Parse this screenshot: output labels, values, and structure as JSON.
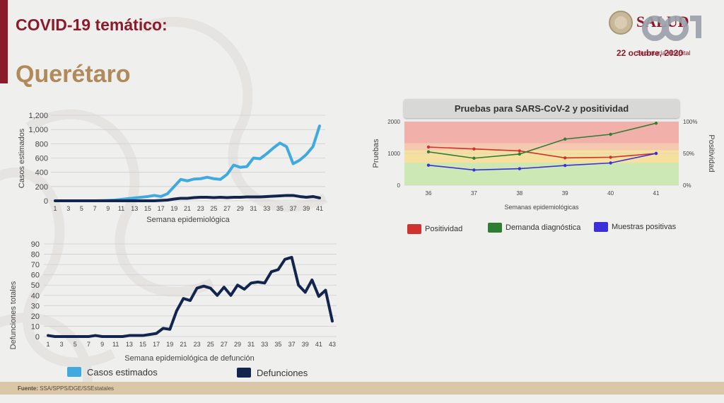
{
  "header": {
    "title": "COVID-19 temático:",
    "state": "Querétaro",
    "date": "22 octubre, 2020",
    "logo_overlay_text": "Secretaría Hospital"
  },
  "footer": {
    "label": "Fuente:",
    "source": "SSA/SPPS/DGE/SSEstatales"
  },
  "colors": {
    "brand": "#8b1a2b",
    "gold": "#b08a5a",
    "cases": "#3fa9e0",
    "deaths": "#14254d",
    "positividad": "#d0322d",
    "demanda": "#2e7d32",
    "muestras": "#3a2fd8"
  },
  "legend_bottom": [
    {
      "name": "Casos estimados",
      "color": "#3fa9e0"
    },
    {
      "name": "Defunciones",
      "color": "#14254d"
    }
  ],
  "chart_data": [
    {
      "type": "line",
      "ylabel": "Casos estimados",
      "xlabel": "Semana epidemiológica",
      "ylim": [
        0,
        1200
      ],
      "yticks": [
        "0",
        "200",
        "400",
        "600",
        "800",
        "1,000",
        "1,200"
      ],
      "xticks": [
        "1",
        "3",
        "5",
        "7",
        "9",
        "11",
        "13",
        "15",
        "17",
        "19",
        "21",
        "23",
        "25",
        "27",
        "29",
        "31",
        "33",
        "35",
        "37",
        "39",
        "41"
      ],
      "x": [
        1,
        2,
        3,
        4,
        5,
        6,
        7,
        8,
        9,
        10,
        11,
        12,
        13,
        14,
        15,
        16,
        17,
        18,
        19,
        20,
        21,
        22,
        23,
        24,
        25,
        26,
        27,
        28,
        29,
        30,
        31,
        32,
        33,
        34,
        35,
        36,
        37,
        38,
        39,
        40,
        41
      ],
      "series": [
        {
          "name": "Casos estimados",
          "values": [
            0,
            0,
            0,
            0,
            0,
            0,
            0,
            2,
            5,
            10,
            20,
            30,
            40,
            50,
            60,
            75,
            60,
            100,
            200,
            300,
            280,
            305,
            310,
            330,
            310,
            300,
            370,
            500,
            470,
            480,
            600,
            590,
            660,
            740,
            810,
            760,
            520,
            570,
            650,
            760,
            1050
          ]
        },
        {
          "name": "Defunciones",
          "values": [
            0,
            0,
            0,
            0,
            0,
            0,
            0,
            0,
            0,
            0,
            0,
            0,
            0,
            0,
            0,
            0,
            5,
            10,
            25,
            35,
            35,
            45,
            50,
            50,
            45,
            50,
            45,
            50,
            50,
            55,
            55,
            55,
            60,
            65,
            70,
            75,
            75,
            60,
            50,
            60,
            40
          ]
        }
      ]
    },
    {
      "type": "line",
      "ylabel": "Defunciones totales",
      "xlabel": "Semana epidemiológica de defunción",
      "ylim": [
        0,
        90
      ],
      "yticks": [
        "0",
        "10",
        "20",
        "30",
        "40",
        "50",
        "60",
        "70",
        "80",
        "90"
      ],
      "xticks": [
        "1",
        "3",
        "5",
        "7",
        "9",
        "11",
        "13",
        "15",
        "17",
        "19",
        "21",
        "23",
        "25",
        "27",
        "29",
        "31",
        "33",
        "35",
        "37",
        "39",
        "41",
        "43"
      ],
      "x": [
        1,
        2,
        3,
        4,
        5,
        6,
        7,
        8,
        9,
        10,
        11,
        12,
        13,
        14,
        15,
        16,
        17,
        18,
        19,
        20,
        21,
        22,
        23,
        24,
        25,
        26,
        27,
        28,
        29,
        30,
        31,
        32,
        33,
        34,
        35,
        36,
        37,
        38,
        39,
        40,
        41,
        42,
        43
      ],
      "series": [
        {
          "name": "Defunciones",
          "values": [
            1,
            0,
            0,
            0,
            0,
            0,
            0,
            1,
            0,
            0,
            0,
            0,
            1,
            1,
            1,
            2,
            3,
            8,
            7,
            25,
            37,
            35,
            47,
            49,
            47,
            40,
            48,
            40,
            50,
            46,
            52,
            53,
            52,
            63,
            65,
            75,
            77,
            50,
            43,
            55,
            39,
            45,
            15
          ]
        }
      ]
    },
    {
      "type": "line",
      "title": "Pruebas para SARS-CoV-2 y positividad",
      "xlabel": "Semanas epidemiológicas",
      "ylabel": "Pruebas",
      "y2label": "Positividad",
      "ylim": [
        0,
        2000
      ],
      "yticks": [
        "0",
        "1000",
        "2000"
      ],
      "y2ticks": [
        "0%",
        "50%",
        "100%"
      ],
      "categories": [
        "36",
        "37",
        "38",
        "39",
        "40",
        "41"
      ],
      "series": [
        {
          "name": "Positividad",
          "axis": "y2",
          "values": [
            60,
            57,
            54,
            43,
            44,
            50
          ]
        },
        {
          "name": "Demanda diagnóstica",
          "axis": "y",
          "values": [
            1050,
            850,
            980,
            1450,
            1600,
            1950
          ]
        },
        {
          "name": "Muestras positivas",
          "axis": "y",
          "values": [
            630,
            480,
            520,
            620,
            700,
            1000
          ]
        }
      ],
      "bands": [
        {
          "color": "#f2b0aa",
          "from": 0.66,
          "to": 1.0
        },
        {
          "color": "#f5c8b0",
          "from": 0.55,
          "to": 0.66
        },
        {
          "color": "#f6e0a0",
          "from": 0.35,
          "to": 0.55
        },
        {
          "color": "#cce8b4",
          "from": 0,
          "to": 0.35
        }
      ]
    }
  ]
}
